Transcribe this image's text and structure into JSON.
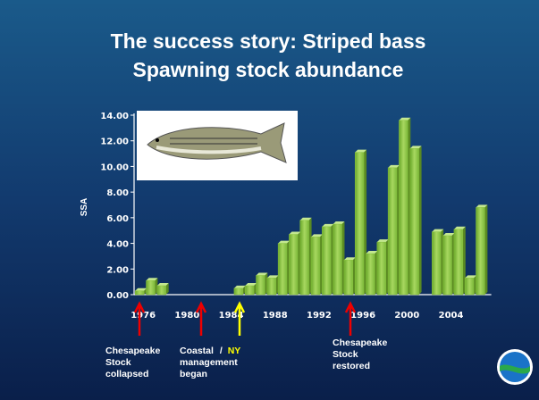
{
  "chart_data": {
    "type": "bar",
    "title": "The success story:  Striped bass",
    "subtitle": "Spawning stock abundance",
    "y_label": "SSA",
    "categories": [
      "1976",
      null,
      null,
      null,
      "1980",
      null,
      null,
      null,
      "1984",
      null,
      null,
      null,
      "1988",
      null,
      null,
      null,
      "1992",
      null,
      null,
      null,
      "1996",
      null,
      null,
      null,
      "2000",
      null,
      null,
      null,
      "2004",
      null,
      null,
      null
    ],
    "values": [
      0.3,
      1.1,
      0.7,
      null,
      null,
      null,
      null,
      null,
      null,
      0.5,
      0.7,
      1.5,
      1.3,
      4.0,
      4.7,
      5.8,
      4.5,
      5.3,
      5.5,
      2.7,
      11.1,
      3.2,
      4.1,
      9.9,
      13.6,
      11.4,
      null,
      4.9,
      4.6,
      5.1,
      1.3,
      6.8
    ],
    "color": "#8cc63f",
    "ylim": [
      0,
      14
    ],
    "yticks": [
      {
        "value": 0,
        "label": "0.00"
      },
      {
        "value": 2,
        "label": "2.00"
      },
      {
        "value": 4,
        "label": "4.00"
      },
      {
        "value": 6,
        "label": "6.00"
      },
      {
        "value": 8,
        "label": "8.00"
      },
      {
        "value": 10,
        "label": "10.00"
      },
      {
        "value": 12,
        "label": "12.00"
      },
      {
        "value": 14,
        "label": "14.00"
      }
    ],
    "annotations": [
      {
        "lines": [
          "Chesapeake",
          "Stock",
          "collapsed"
        ]
      },
      {
        "lines": [
          "Coastal",
          "management",
          "began"
        ],
        "separator": "/",
        "highlight": "NY"
      },
      {
        "lines": [
          "Chesapeake",
          "Stock",
          "restored"
        ]
      }
    ]
  }
}
